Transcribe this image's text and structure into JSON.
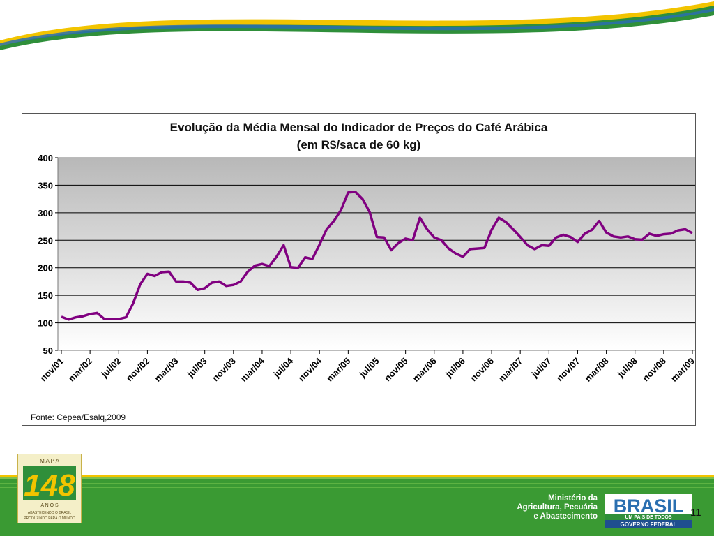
{
  "chart_data": {
    "type": "line",
    "title": "Evolução da Média Mensal do Indicador de Preços do Café Arábica",
    "subtitle": "(em R$/saca de 60 kg)",
    "ylim": [
      50,
      400
    ],
    "yticks": [
      50,
      100,
      150,
      200,
      250,
      300,
      350,
      400
    ],
    "xtick_labels": [
      "nov/01",
      "mar/02",
      "jul/02",
      "nov/02",
      "mar/03",
      "jul/03",
      "nov/03",
      "mar/04",
      "jul/04",
      "nov/04",
      "mar/05",
      "jul/05",
      "nov/05",
      "mar/06",
      "jul/06",
      "nov/06",
      "mar/07",
      "jul/07",
      "nov/07",
      "mar/08",
      "jul/08",
      "nov/08",
      "mar/09"
    ],
    "grid": true,
    "series": [
      {
        "color": "#800080",
        "values": [
          111,
          106,
          110,
          112,
          116,
          118,
          107,
          107,
          107,
          110,
          135,
          170,
          189,
          185,
          192,
          193,
          175,
          175,
          173,
          160,
          163,
          173,
          175,
          167,
          169,
          175,
          193,
          204,
          207,
          203,
          220,
          241,
          201,
          200,
          219,
          216,
          242,
          270,
          285,
          305,
          337,
          338,
          325,
          301,
          256,
          255,
          232,
          245,
          253,
          250,
          291,
          270,
          255,
          250,
          235,
          226,
          220,
          234,
          235,
          236,
          269,
          291,
          283,
          270,
          256,
          241,
          234,
          241,
          240,
          255,
          260,
          256,
          247,
          262,
          269,
          285,
          264,
          257,
          255,
          257,
          252,
          251,
          262,
          258,
          261,
          262,
          268,
          270,
          263
        ]
      }
    ]
  },
  "source_note": "Fonte: Cepea/Esalq,2009",
  "footer": {
    "ministry_lines": [
      "Ministério da",
      "Agricultura, Pecuária",
      "e Abastecimento"
    ],
    "page_number": "11",
    "mapa_logo": {
      "top": "M A P A",
      "number": "148",
      "sub": "A N O S",
      "tag1": "ABASTECENDO O BRASIL",
      "tag2": "PRODUZINDO PARA O MUNDO"
    },
    "brasil_logo": {
      "word": "BRASIL",
      "tagline": "UM PAÍS DE TODOS",
      "gov": "GOVERNO FEDERAL"
    }
  },
  "colors": {
    "line": "#800080",
    "green": "#3a9a33",
    "yellow": "#f2c400",
    "blue": "#2a6fb0"
  }
}
